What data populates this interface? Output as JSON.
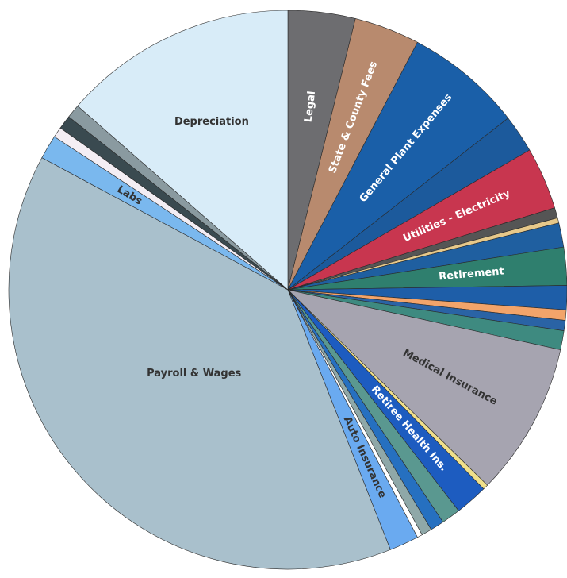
{
  "chart_data": {
    "type": "pie",
    "categories": [
      "Legal",
      "State & County Fees",
      "General Plant Expenses",
      null,
      "Utilities - Electricity",
      null,
      null,
      null,
      "Retirement",
      null,
      null,
      null,
      null,
      "Medical Insurance",
      null,
      "Retiree Health Ins.",
      null,
      null,
      null,
      null,
      "Auto Insurance",
      "Payroll & Wages",
      "Labs",
      null,
      null,
      null,
      "Depreciation"
    ],
    "values": [
      3.9,
      3.8,
      6.8,
      2.2,
      3.6,
      0.6,
      0.3,
      1.4,
      2.2,
      1.4,
      0.6,
      0.6,
      1.1,
      8.9,
      0.3,
      1.9,
      1.1,
      0.8,
      0.6,
      0.3,
      1.7,
      38.9,
      1.4,
      0.6,
      0.8,
      0.8,
      13.6
    ],
    "colors": [
      "#6d6d70",
      "#b88a6e",
      "#1a5fa8",
      "#1c5a9c",
      "#c8364f",
      "#555555",
      "#e6c88a",
      "#1f5fa0",
      "#2f7f6e",
      "#1e5ea8",
      "#f2a46a",
      "#2a63a5",
      "#3e8a80",
      "#a6a4b0",
      "#f0e08a",
      "#1d5cc0",
      "#5a9890",
      "#2670c0",
      "#8fa8a8",
      "#ffffff",
      "#6aaaf0",
      "#a9c0cc",
      "#7ab8ee",
      "#f4eef4",
      "#3a4a50",
      "#8a9aa0",
      "#d8ecf8"
    ]
  }
}
